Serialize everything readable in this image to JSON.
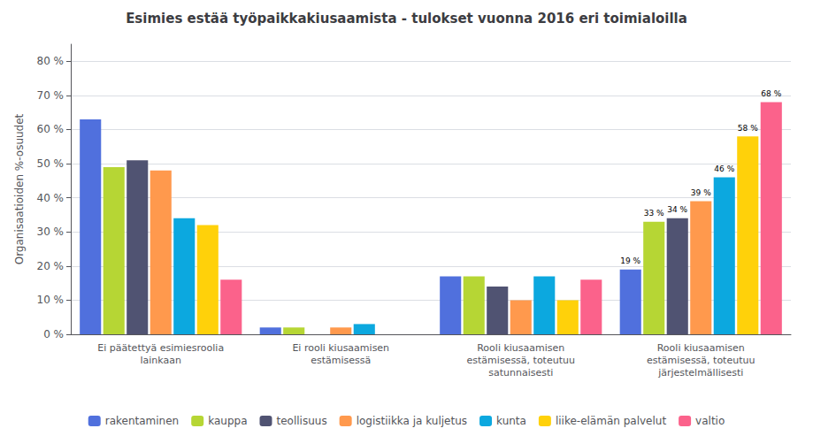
{
  "chart_data": {
    "type": "bar",
    "title": "Esimies estää työpaikkakiusaamista - tulokset vuonna 2016 eri toimialoilla",
    "ylabel": "Organisaatioiden %-osuudet",
    "categories": [
      "Ei päätettyä esimiesroolia\nlainkaan",
      "Ei rooli kiusaamisen\nestämisessä",
      "Rooli kiusaamisen\nestämisessä, toteutuu\nsatunnaisesti",
      "Rooli kiusaamisen\nestämisessä, toteutuu\njärjestelmällisesti"
    ],
    "series": [
      {
        "name": "rakentaminen",
        "values": [
          63,
          2,
          17,
          19
        ],
        "value_labels": [
          null,
          null,
          null,
          "19 %"
        ]
      },
      {
        "name": "kauppa",
        "values": [
          49,
          2,
          17,
          33
        ],
        "value_labels": [
          null,
          null,
          null,
          "33 %"
        ]
      },
      {
        "name": "teollisuus",
        "values": [
          51,
          0,
          14,
          34
        ],
        "value_labels": [
          null,
          null,
          null,
          "34 %"
        ]
      },
      {
        "name": "logistiikka ja kuljetus",
        "values": [
          48,
          2,
          10,
          39
        ],
        "value_labels": [
          null,
          null,
          null,
          "39 %"
        ]
      },
      {
        "name": "kunta",
        "values": [
          34,
          3,
          17,
          46
        ],
        "value_labels": [
          null,
          null,
          null,
          "46 %"
        ]
      },
      {
        "name": "liike-elämän palvelut",
        "values": [
          32,
          0,
          10,
          58
        ],
        "value_labels": [
          null,
          null,
          null,
          "58 %"
        ]
      },
      {
        "name": "valtio",
        "values": [
          16,
          0,
          16,
          68
        ],
        "value_labels": [
          null,
          null,
          null,
          "68 %"
        ]
      }
    ],
    "ylim": [
      0,
      85
    ],
    "yticks": [
      {
        "value": 0,
        "label": "0 %"
      },
      {
        "value": 10,
        "label": "10 %"
      },
      {
        "value": 20,
        "label": "20 %"
      },
      {
        "value": 30,
        "label": "30 %"
      },
      {
        "value": 40,
        "label": "40 %"
      },
      {
        "value": 50,
        "label": "50 %"
      },
      {
        "value": 60,
        "label": "60 %"
      },
      {
        "value": 70,
        "label": "70 %"
      },
      {
        "value": 80,
        "label": "80 %"
      }
    ],
    "grid": true,
    "legend": "bottom"
  }
}
